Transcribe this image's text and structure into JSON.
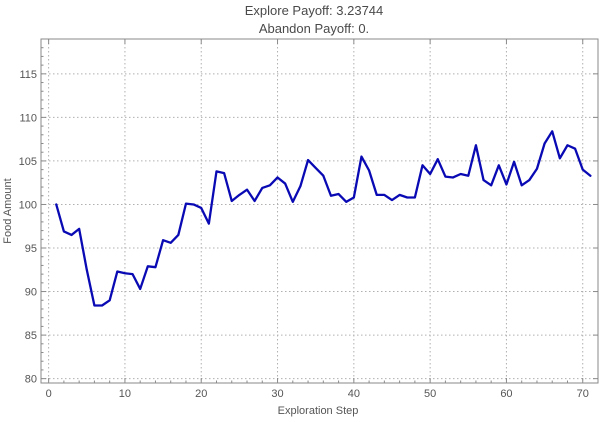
{
  "chart_data": {
    "type": "line",
    "title": "Explore Payoff: 3.23744",
    "subtitle": "Abandon Payoff: 0.",
    "xlabel": "Exploration Step",
    "ylabel": "Food Amount",
    "xlim": [
      -1,
      72
    ],
    "ylim": [
      79.5,
      119
    ],
    "xticks": [
      0,
      10,
      20,
      30,
      40,
      50,
      60,
      70
    ],
    "yticks": [
      80,
      85,
      90,
      95,
      100,
      105,
      110,
      115
    ],
    "grid": true,
    "line_color": "#0a0ab4",
    "series": [
      {
        "x": [
          1,
          2,
          3,
          4,
          5,
          6,
          7,
          8,
          9,
          10,
          11,
          12,
          13,
          14,
          15,
          16,
          17,
          18,
          19,
          20,
          21,
          22,
          23,
          24,
          25,
          26,
          27,
          28,
          29,
          30,
          31,
          32,
          33,
          34,
          35,
          36,
          37,
          38,
          39,
          40,
          41,
          42,
          43,
          44,
          45,
          46,
          47,
          48,
          49,
          50,
          51,
          52,
          53,
          54,
          55,
          56,
          57,
          58,
          59,
          60,
          61,
          62,
          63,
          64,
          65,
          66,
          67,
          68,
          69,
          70,
          71
        ],
        "values": [
          100.0,
          96.9,
          96.5,
          97.2,
          92.5,
          88.4,
          88.4,
          89.0,
          92.3,
          92.1,
          92.0,
          90.3,
          92.9,
          92.8,
          95.9,
          95.6,
          96.5,
          100.1,
          100.0,
          99.6,
          97.8,
          103.8,
          103.6,
          100.4,
          101.1,
          101.7,
          100.4,
          101.9,
          102.2,
          103.1,
          102.4,
          100.3,
          102.1,
          105.1,
          104.2,
          103.3,
          101.0,
          101.2,
          100.3,
          100.8,
          105.5,
          103.9,
          101.1,
          101.1,
          100.5,
          101.1,
          100.8,
          100.8,
          104.5,
          103.5,
          105.2,
          103.2,
          103.1,
          103.5,
          103.3,
          106.8,
          102.8,
          102.2,
          104.5,
          102.3,
          104.9,
          102.2,
          102.8,
          104.1,
          107.0,
          108.4,
          105.3,
          106.8,
          106.4,
          104.0,
          103.3
        ]
      }
    ]
  }
}
